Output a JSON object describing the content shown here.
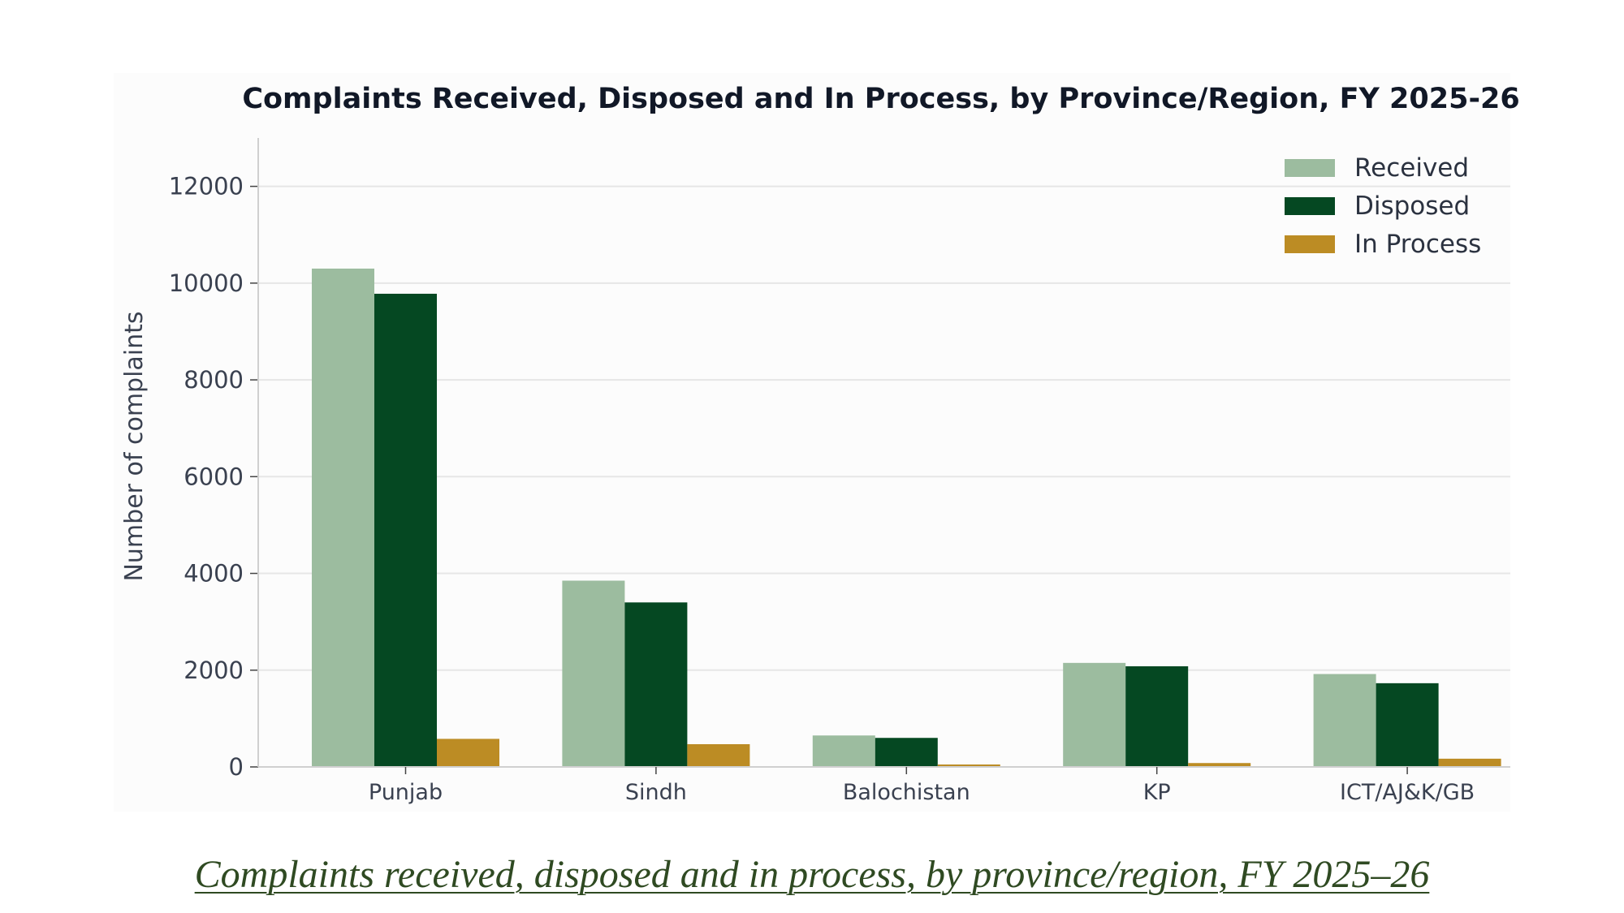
{
  "caption": "Complaints received, disposed and in process, by province/region, FY 2025–26",
  "chart_data": {
    "type": "bar",
    "title": "Complaints Received, Disposed and In Process, by Province/Region, FY 2025-26",
    "xlabel": "",
    "ylabel": "Number of complaints",
    "categories": [
      "Punjab",
      "Sindh",
      "Balochistan",
      "KP",
      "ICT/AJ&K/GB"
    ],
    "series": [
      {
        "name": "Received",
        "color": "#9cbc9f",
        "values": [
          10300,
          3850,
          650,
          2150,
          1920
        ]
      },
      {
        "name": "Disposed",
        "color": "#054822",
        "values": [
          9780,
          3400,
          600,
          2080,
          1730
        ]
      },
      {
        "name": "In Process",
        "color": "#bc8c24",
        "values": [
          580,
          470,
          50,
          80,
          170
        ]
      }
    ],
    "ylim": [
      0,
      13000
    ],
    "yticks": [
      0,
      2000,
      4000,
      6000,
      8000,
      10000,
      12000
    ],
    "grid": true,
    "legend_position": "top-right",
    "colors": {
      "axis_text": "#3a4150",
      "grid": "#e6e6e6",
      "title": "#111827"
    }
  }
}
